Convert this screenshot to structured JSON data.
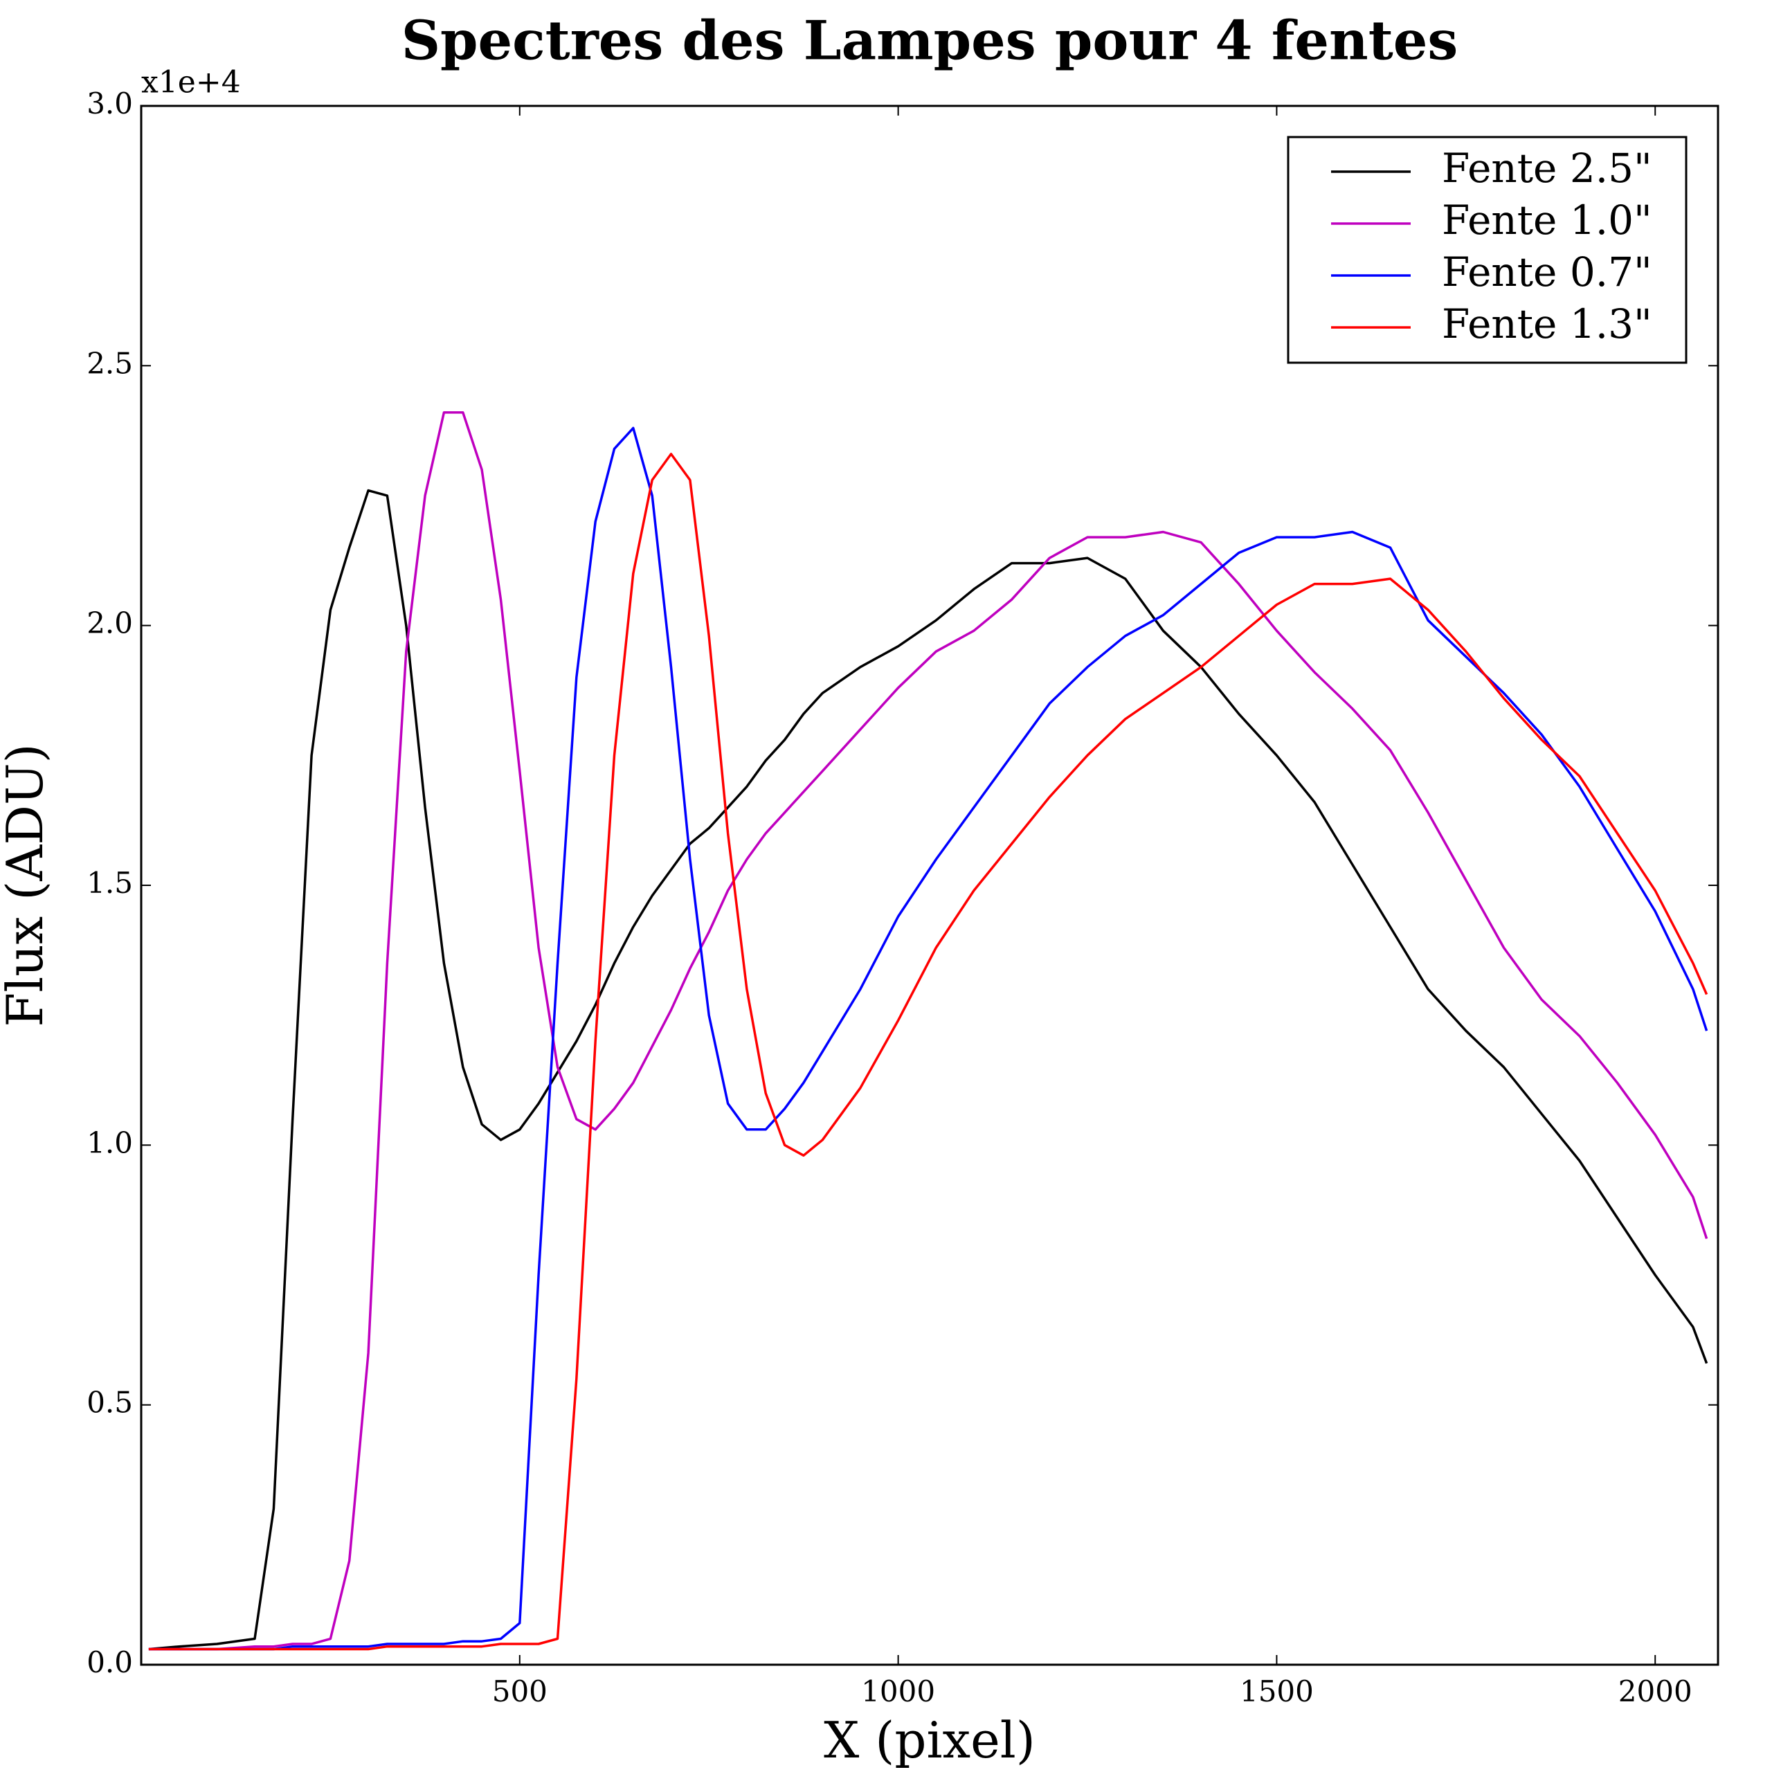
{
  "chart_data": {
    "type": "line",
    "title": "Spectres des Lampes pour 4 fentes",
    "x_label": "X (pixel)",
    "y_label": "Flux (ADU)",
    "y_offset_label": "x1e+4",
    "xlim": [
      0,
      2083
    ],
    "ylim": [
      0,
      3
    ],
    "xticks": [
      500,
      1000,
      1500,
      2000
    ],
    "yticks": [
      {
        "value": 0,
        "label": "0.0"
      },
      0.5,
      {
        "value": 1,
        "label": "1.0"
      },
      1.5,
      {
        "value": 2,
        "label": "2.0"
      },
      2.5,
      {
        "value": 3,
        "label": "3.0"
      }
    ],
    "grid": false,
    "legend": "upper right",
    "x": [
      10,
      50,
      100,
      150,
      175,
      200,
      225,
      250,
      275,
      300,
      325,
      350,
      375,
      400,
      425,
      450,
      475,
      500,
      525,
      550,
      575,
      600,
      625,
      650,
      675,
      700,
      725,
      750,
      775,
      800,
      825,
      850,
      875,
      900,
      950,
      1000,
      1050,
      1100,
      1150,
      1200,
      1250,
      1300,
      1350,
      1400,
      1450,
      1500,
      1550,
      1600,
      1650,
      1700,
      1750,
      1800,
      1850,
      1900,
      1950,
      2000,
      2050,
      2068
    ],
    "series": [
      {
        "name": "Fente 2.5\"",
        "color": "#000000",
        "values": [
          0.03,
          0.035,
          0.04,
          0.05,
          0.3,
          1.05,
          1.75,
          2.03,
          2.15,
          2.26,
          2.25,
          2.0,
          1.65,
          1.35,
          1.15,
          1.04,
          1.01,
          1.03,
          1.08,
          1.14,
          1.2,
          1.27,
          1.35,
          1.42,
          1.48,
          1.53,
          1.58,
          1.61,
          1.65,
          1.69,
          1.74,
          1.78,
          1.83,
          1.87,
          1.92,
          1.96,
          2.01,
          2.07,
          2.12,
          2.12,
          2.13,
          2.09,
          1.99,
          1.92,
          1.83,
          1.75,
          1.66,
          1.54,
          1.42,
          1.3,
          1.22,
          1.15,
          1.06,
          0.97,
          0.86,
          0.75,
          0.65,
          0.58
        ]
      },
      {
        "name": "Fente 1.0\"",
        "color": "#bf00bf",
        "values": [
          0.03,
          0.03,
          0.03,
          0.035,
          0.035,
          0.04,
          0.04,
          0.05,
          0.2,
          0.6,
          1.35,
          1.95,
          2.25,
          2.41,
          2.41,
          2.3,
          2.05,
          1.72,
          1.38,
          1.15,
          1.05,
          1.03,
          1.07,
          1.12,
          1.19,
          1.26,
          1.34,
          1.41,
          1.49,
          1.55,
          1.6,
          1.64,
          1.68,
          1.72,
          1.8,
          1.88,
          1.95,
          1.99,
          2.05,
          2.13,
          2.17,
          2.17,
          2.18,
          2.16,
          2.08,
          1.99,
          1.91,
          1.84,
          1.76,
          1.64,
          1.51,
          1.38,
          1.28,
          1.21,
          1.12,
          1.02,
          0.9,
          0.82
        ]
      },
      {
        "name": "Fente 0.7\"",
        "color": "#0000ff",
        "values": [
          0.03,
          0.03,
          0.03,
          0.03,
          0.03,
          0.035,
          0.035,
          0.035,
          0.035,
          0.035,
          0.04,
          0.04,
          0.04,
          0.04,
          0.045,
          0.045,
          0.05,
          0.08,
          0.75,
          1.35,
          1.9,
          2.2,
          2.34,
          2.38,
          2.25,
          1.92,
          1.55,
          1.25,
          1.08,
          1.03,
          1.03,
          1.07,
          1.12,
          1.18,
          1.3,
          1.44,
          1.55,
          1.65,
          1.75,
          1.85,
          1.92,
          1.98,
          2.02,
          2.08,
          2.14,
          2.17,
          2.17,
          2.18,
          2.15,
          2.01,
          1.94,
          1.87,
          1.79,
          1.69,
          1.57,
          1.45,
          1.3,
          1.22
        ]
      },
      {
        "name": "Fente 1.3\"",
        "color": "#ff0000",
        "values": [
          0.03,
          0.03,
          0.03,
          0.03,
          0.03,
          0.03,
          0.03,
          0.03,
          0.03,
          0.03,
          0.035,
          0.035,
          0.035,
          0.035,
          0.035,
          0.035,
          0.04,
          0.04,
          0.04,
          0.05,
          0.55,
          1.2,
          1.75,
          2.1,
          2.28,
          2.33,
          2.28,
          1.98,
          1.6,
          1.3,
          1.1,
          1.0,
          0.98,
          1.01,
          1.11,
          1.24,
          1.38,
          1.49,
          1.58,
          1.67,
          1.75,
          1.82,
          1.87,
          1.92,
          1.98,
          2.04,
          2.08,
          2.08,
          2.09,
          2.03,
          1.95,
          1.86,
          1.78,
          1.71,
          1.6,
          1.49,
          1.35,
          1.29
        ]
      }
    ]
  }
}
